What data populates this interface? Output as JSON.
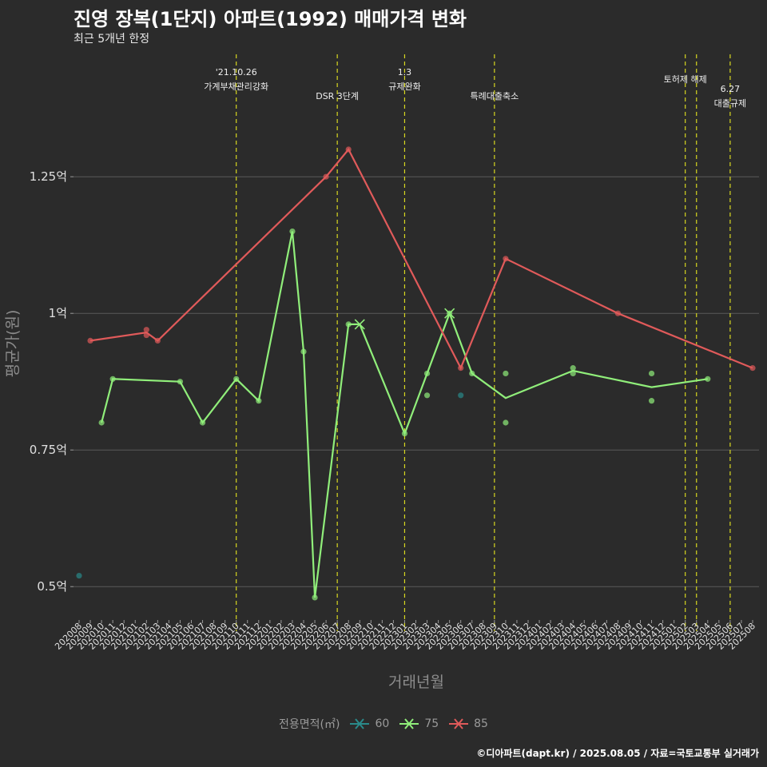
{
  "header": {
    "title": "진영 장복(1단지) 아파트(1992) 매매가격 변화",
    "subtitle": "최근 5개년 한정"
  },
  "footer": {
    "credit": "©디아파트(dapt.kr) / 2025.08.05 / 자료=국토교통부 실거래가"
  },
  "chart_data": {
    "type": "line",
    "xlabel": "거래년월",
    "ylabel": "평균가(원)",
    "ylim": [
      0.43,
      1.48
    ],
    "y_ticks": [
      {
        "value": 0.5,
        "label": "0.5억"
      },
      {
        "value": 0.75,
        "label": "0.75억"
      },
      {
        "value": 1.0,
        "label": "1억"
      },
      {
        "value": 1.25,
        "label": "1.25억"
      }
    ],
    "grid": true,
    "legend_position": "bottom",
    "legend_title": "전용면적(㎡)",
    "colors": {
      "60": "#2a8a8a",
      "75": "#90ee7a",
      "85": "#e05a5a",
      "event": "#d8d820"
    },
    "categories": [
      "202008",
      "202009",
      "202010",
      "202011",
      "202012",
      "202101",
      "202102",
      "202103",
      "202104",
      "202105",
      "202106",
      "202107",
      "202108",
      "202109",
      "202110",
      "202111",
      "202112",
      "202201",
      "202202",
      "202203",
      "202204",
      "202205",
      "202206",
      "202207",
      "202208",
      "202209",
      "202210",
      "202211",
      "202212",
      "202301",
      "202302",
      "202303",
      "202304",
      "202305",
      "202306",
      "202307",
      "202308",
      "202309",
      "202310",
      "202311",
      "202312",
      "202401",
      "202402",
      "202403",
      "202404",
      "202405",
      "202406",
      "202407",
      "202408",
      "202409",
      "202410",
      "202411",
      "202412",
      "202501",
      "202502",
      "202503",
      "202504",
      "202505",
      "202506",
      "202507",
      "202508"
    ],
    "series": [
      {
        "name": "60",
        "line": [],
        "points": [
          [
            "202008",
            0.52
          ],
          [
            "202306",
            0.85
          ]
        ],
        "marker_months": []
      },
      {
        "name": "75",
        "line": [
          [
            "202010",
            0.8
          ],
          [
            "202011",
            0.88
          ],
          [
            "202105",
            0.875
          ],
          [
            "202107",
            0.8
          ],
          [
            "202110",
            0.88
          ],
          [
            "202112",
            0.84
          ],
          [
            "202203",
            1.15
          ],
          [
            "202204",
            0.93
          ],
          [
            "202205",
            0.48
          ],
          [
            "202208",
            0.98
          ],
          [
            "202209",
            0.98
          ],
          [
            "202301",
            0.78
          ],
          [
            "202305",
            1.0
          ],
          [
            "202307",
            0.89
          ],
          [
            "202310",
            0.845
          ],
          [
            "202404",
            0.895
          ],
          [
            "202411",
            0.865
          ],
          [
            "202504",
            0.88
          ]
        ],
        "points": [
          [
            "202010",
            0.8
          ],
          [
            "202011",
            0.88
          ],
          [
            "202105",
            0.875
          ],
          [
            "202107",
            0.8
          ],
          [
            "202110",
            0.88
          ],
          [
            "202112",
            0.84
          ],
          [
            "202203",
            1.15
          ],
          [
            "202204",
            0.93
          ],
          [
            "202205",
            0.48
          ],
          [
            "202208",
            0.98
          ],
          [
            "202301",
            0.78
          ],
          [
            "202303",
            0.85
          ],
          [
            "202303",
            0.89
          ],
          [
            "202305",
            1.0
          ],
          [
            "202307",
            0.89
          ],
          [
            "202310",
            0.8
          ],
          [
            "202310",
            0.89
          ],
          [
            "202404",
            0.89
          ],
          [
            "202404",
            0.9
          ],
          [
            "202411",
            0.84
          ],
          [
            "202411",
            0.89
          ],
          [
            "202504",
            0.88
          ]
        ],
        "marker_months": [
          "202209",
          "202305"
        ]
      },
      {
        "name": "85",
        "line": [
          [
            "202009",
            0.95
          ],
          [
            "202102",
            0.965
          ],
          [
            "202103",
            0.95
          ],
          [
            "202206",
            1.25
          ],
          [
            "202208",
            1.3
          ],
          [
            "202306",
            0.9
          ],
          [
            "202310",
            1.1
          ],
          [
            "202408",
            1.0
          ],
          [
            "202508",
            0.9
          ]
        ],
        "points": [
          [
            "202009",
            0.95
          ],
          [
            "202102",
            0.96
          ],
          [
            "202102",
            0.97
          ],
          [
            "202103",
            0.95
          ],
          [
            "202206",
            1.25
          ],
          [
            "202208",
            1.3
          ],
          [
            "202306",
            0.9
          ],
          [
            "202310",
            1.1
          ],
          [
            "202408",
            1.0
          ],
          [
            "202508",
            0.9
          ]
        ],
        "marker_months": []
      }
    ],
    "events": [
      {
        "month": "202110",
        "lines": [
          "'21.10.26",
          "가계부채관리강화"
        ],
        "row": 0
      },
      {
        "month": "202207",
        "lines": [
          "DSR 3단계"
        ],
        "row": 2
      },
      {
        "month": "202301",
        "lines": [
          "1.3",
          "규제완화"
        ],
        "row": 0
      },
      {
        "month": "202309",
        "lines": [
          "특례대출축소"
        ],
        "row": 2
      },
      {
        "month": "202502",
        "lines": [
          "토허제 해제"
        ],
        "row": 1
      },
      {
        "month": "202503",
        "lines": [],
        "row": 1
      },
      {
        "month": "202506",
        "lines": [
          "6.27",
          "대출규제"
        ],
        "row": 3
      }
    ]
  }
}
